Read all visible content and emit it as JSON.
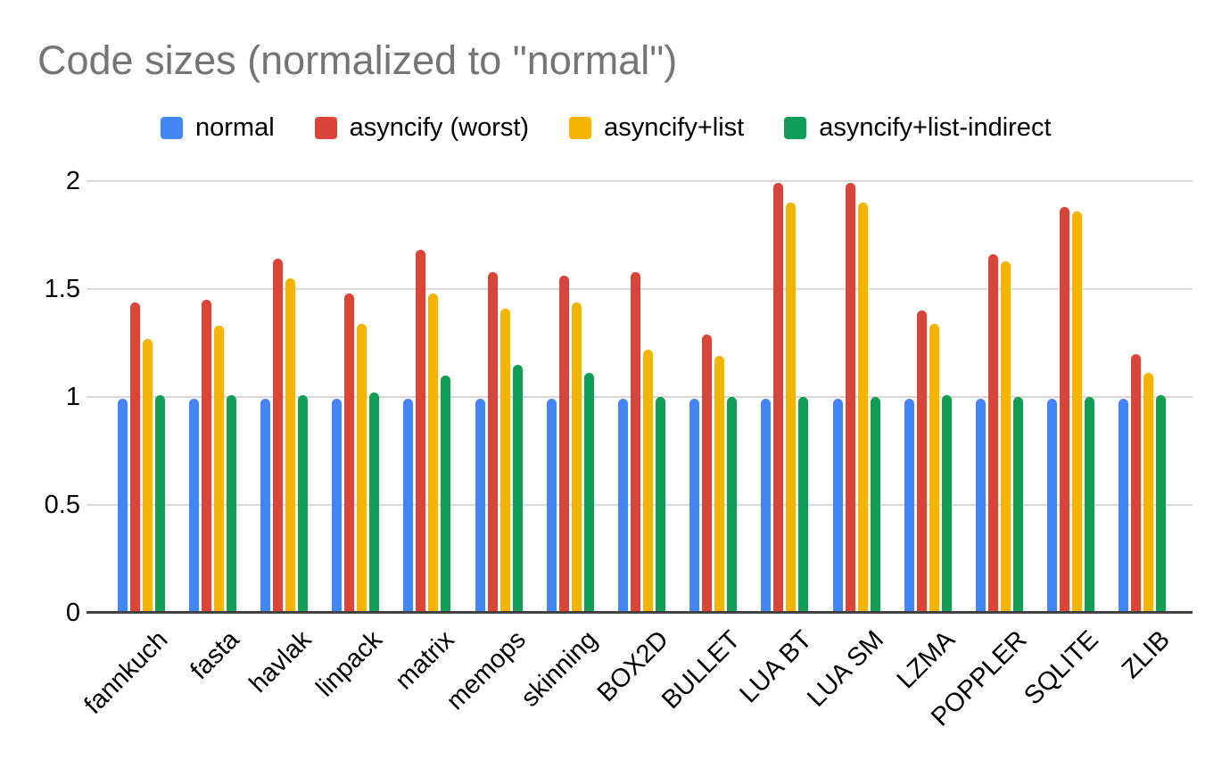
{
  "chart_data": {
    "type": "bar",
    "title": "Code sizes (normalized to \"normal\")",
    "xlabel": "",
    "ylabel": "",
    "categories": [
      "fannkuch",
      "fasta",
      "havlak",
      "linpack",
      "matrix",
      "memops",
      "skinning",
      "BOX2D",
      "BULLET",
      "LUA BT",
      "LUA SM",
      "LZMA",
      "POPPLER",
      "SQLITE",
      "ZLIB"
    ],
    "series": [
      {
        "name": "normal",
        "color": "#4285F4",
        "values": [
          0.99,
          0.99,
          0.99,
          0.99,
          0.99,
          0.99,
          0.99,
          0.99,
          0.99,
          0.99,
          0.99,
          0.99,
          0.99,
          0.99,
          0.99
        ]
      },
      {
        "name": "asyncify (worst)",
        "color": "#DB4437",
        "values": [
          1.44,
          1.45,
          1.64,
          1.48,
          1.68,
          1.58,
          1.56,
          1.58,
          1.29,
          1.99,
          1.99,
          1.4,
          1.66,
          1.88,
          1.2
        ]
      },
      {
        "name": "asyncify+list",
        "color": "#F4B400",
        "values": [
          1.27,
          1.33,
          1.55,
          1.34,
          1.48,
          1.41,
          1.44,
          1.22,
          1.19,
          1.9,
          1.9,
          1.34,
          1.63,
          1.86,
          1.11
        ]
      },
      {
        "name": "asyncify+list-indirect",
        "color": "#0F9D58",
        "values": [
          1.01,
          1.01,
          1.01,
          1.02,
          1.1,
          1.15,
          1.11,
          1.0,
          1.0,
          1.0,
          1.0,
          1.01,
          1.0,
          1.0,
          1.01
        ]
      }
    ],
    "yticks": [
      0,
      0.5,
      1,
      1.5,
      2
    ],
    "ytick_labels": [
      "0",
      "0.5",
      "1",
      "1.5",
      "2"
    ],
    "ylim": [
      0,
      2.05
    ],
    "grid": true,
    "legend_position": "top",
    "title_color": "#757575",
    "grid_color": "#d9d9d9",
    "axis_color": "#424242",
    "label_color": "#000000"
  }
}
